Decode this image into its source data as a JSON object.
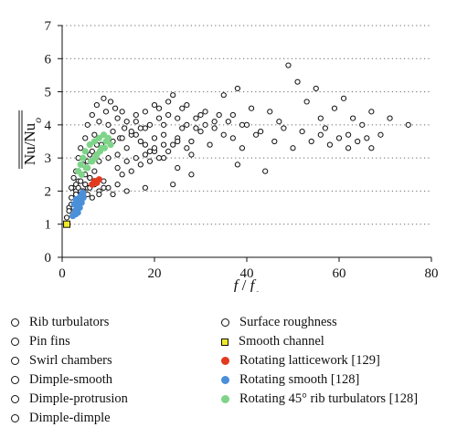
{
  "chart_data": {
    "type": "scatter",
    "ylabel_html": "Nu/Nu<sub>o</sub>",
    "ylabel_parts": {
      "main": "Nu/Nu",
      "sub": "o"
    },
    "xlabel_parts": {
      "f": "f",
      "slash": " / ",
      "fo": "f",
      "sub": "o"
    },
    "xlim": [
      0,
      80
    ],
    "ylim": [
      0,
      7
    ],
    "x_ticks": [
      "0",
      "20",
      "40",
      "60",
      "80"
    ],
    "y_ticks": [
      "0",
      "1",
      "2",
      "3",
      "4",
      "5",
      "6",
      "7"
    ],
    "grid": "horizontal-dotted",
    "series": [
      {
        "name": "Rib turbulators",
        "marker": "open-circle",
        "color": "#111111",
        "points": [
          [
            2.5,
            2.1
          ],
          [
            3,
            2.6
          ],
          [
            3.5,
            3.0
          ],
          [
            4,
            3.3
          ],
          [
            4.5,
            2.5
          ],
          [
            5,
            3.6
          ],
          [
            5.5,
            4.0
          ],
          [
            6,
            3.1
          ],
          [
            6.5,
            4.3
          ],
          [
            7,
            3.7
          ],
          [
            7.5,
            4.6
          ],
          [
            8,
            4.1
          ],
          [
            8.5,
            3.4
          ],
          [
            9,
            4.8
          ],
          [
            9.5,
            4.4
          ],
          [
            10,
            4.0
          ],
          [
            10.5,
            4.7
          ],
          [
            11,
            3.8
          ],
          [
            11.5,
            4.5
          ],
          [
            12,
            4.2
          ],
          [
            12.5,
            3.6
          ],
          [
            13,
            4.4
          ],
          [
            13.5,
            3.9
          ],
          [
            14,
            4.1
          ],
          [
            15,
            3.7
          ],
          [
            16,
            4.3
          ],
          [
            17,
            3.5
          ],
          [
            18,
            3.9
          ],
          [
            19,
            3.2
          ],
          [
            20,
            3.6
          ],
          [
            22,
            4.0
          ],
          [
            24,
            3.4
          ],
          [
            26,
            3.9
          ],
          [
            28,
            3.1
          ],
          [
            30,
            4.3
          ]
        ]
      },
      {
        "name": "Pin fins",
        "marker": "open-circle",
        "color": "#111111",
        "points": [
          [
            3,
            2.0
          ],
          [
            3.5,
            2.3
          ],
          [
            4,
            1.9
          ],
          [
            4.5,
            2.8
          ],
          [
            5,
            2.2
          ],
          [
            5.5,
            2.9
          ],
          [
            6,
            2.4
          ],
          [
            6.5,
            3.2
          ],
          [
            7,
            2.6
          ],
          [
            7.5,
            3.4
          ],
          [
            8,
            2.9
          ],
          [
            9,
            3.3
          ],
          [
            10,
            3.0
          ],
          [
            11,
            3.5
          ],
          [
            12,
            3.1
          ],
          [
            13,
            3.6
          ],
          [
            14,
            3.3
          ],
          [
            16,
            3.7
          ],
          [
            18,
            3.4
          ],
          [
            20,
            3.2
          ],
          [
            22,
            3.0
          ],
          [
            25,
            2.7
          ]
        ]
      },
      {
        "name": "Swirl chambers",
        "marker": "open-circle",
        "color": "#111111",
        "points": [
          [
            21,
            4.5
          ],
          [
            23,
            4.7
          ],
          [
            25,
            4.2
          ],
          [
            27,
            4.6
          ],
          [
            29,
            3.9
          ],
          [
            31,
            4.4
          ],
          [
            33,
            4.1
          ],
          [
            35,
            4.9
          ],
          [
            37,
            4.3
          ],
          [
            38,
            5.1
          ],
          [
            39,
            4.0
          ],
          [
            41,
            4.5
          ],
          [
            43,
            3.8
          ],
          [
            45,
            4.4
          ],
          [
            47,
            4.1
          ],
          [
            49,
            5.8
          ],
          [
            51,
            5.3
          ],
          [
            53,
            4.7
          ],
          [
            55,
            5.1
          ],
          [
            56,
            4.2
          ],
          [
            57,
            3.9
          ],
          [
            59,
            4.5
          ],
          [
            61,
            4.8
          ],
          [
            62,
            3.7
          ],
          [
            63,
            4.2
          ],
          [
            65,
            4.0
          ],
          [
            66,
            3.6
          ],
          [
            67,
            4.4
          ],
          [
            69,
            3.7
          ],
          [
            71,
            4.2
          ],
          [
            75,
            4.0
          ]
        ]
      },
      {
        "name": "Dimple-smooth",
        "marker": "open-circle",
        "color": "#111111",
        "points": [
          [
            2,
            2.1
          ],
          [
            2.5,
            2.4
          ],
          [
            3,
            2.2
          ],
          [
            3.5,
            2.6
          ],
          [
            4,
            2.3
          ],
          [
            4.5,
            2.0
          ],
          [
            5,
            2.5
          ],
          [
            5.5,
            2.1
          ],
          [
            6,
            2.4
          ],
          [
            7,
            2.2
          ],
          [
            8,
            2.0
          ],
          [
            9,
            2.3
          ],
          [
            10,
            2.1
          ],
          [
            11,
            1.9
          ],
          [
            12,
            2.2
          ],
          [
            14,
            2.0
          ],
          [
            18,
            2.1
          ]
        ]
      },
      {
        "name": "Dimple-protrusion",
        "marker": "open-circle",
        "color": "#111111",
        "points": [
          [
            15,
            3.8
          ],
          [
            16,
            4.1
          ],
          [
            17,
            3.9
          ],
          [
            18,
            4.4
          ],
          [
            19,
            4.0
          ],
          [
            20,
            4.6
          ],
          [
            21,
            4.2
          ],
          [
            22,
            3.7
          ],
          [
            23,
            4.3
          ],
          [
            24,
            4.9
          ],
          [
            25,
            3.6
          ],
          [
            26,
            4.5
          ],
          [
            27,
            4.0
          ],
          [
            28,
            3.5
          ],
          [
            29,
            4.2
          ],
          [
            30,
            3.8
          ],
          [
            31,
            4.0
          ],
          [
            32,
            3.4
          ],
          [
            33,
            3.9
          ],
          [
            34,
            4.3
          ],
          [
            35,
            3.7
          ],
          [
            36,
            4.1
          ],
          [
            37,
            3.6
          ],
          [
            38,
            2.8
          ],
          [
            39,
            3.3
          ],
          [
            40,
            4.0
          ],
          [
            42,
            3.7
          ],
          [
            44,
            2.6
          ],
          [
            46,
            3.5
          ],
          [
            48,
            3.9
          ],
          [
            50,
            3.3
          ],
          [
            52,
            3.8
          ],
          [
            54,
            3.5
          ],
          [
            56,
            3.7
          ],
          [
            58,
            3.4
          ],
          [
            60,
            3.6
          ],
          [
            62,
            3.3
          ],
          [
            64,
            3.5
          ],
          [
            67,
            3.3
          ]
        ]
      },
      {
        "name": "Dimple-dimple",
        "marker": "open-circle",
        "color": "#111111",
        "points": [
          [
            1.5,
            1.5
          ],
          [
            2,
            1.8
          ],
          [
            2.5,
            1.6
          ],
          [
            3,
            1.9
          ],
          [
            3.5,
            1.7
          ],
          [
            4,
            2.0
          ],
          [
            4.5,
            1.8
          ],
          [
            5,
            2.2
          ],
          [
            5.5,
            1.9
          ],
          [
            6,
            2.1
          ],
          [
            6.5,
            1.8
          ],
          [
            7,
            2.3
          ],
          [
            8,
            1.9
          ],
          [
            9,
            2.1
          ]
        ]
      },
      {
        "name": "Surface roughness",
        "marker": "open-circle",
        "color": "#111111",
        "points": [
          [
            1,
            1.2
          ],
          [
            1.5,
            1.4
          ],
          [
            2,
            1.6
          ],
          [
            2.5,
            1.5
          ],
          [
            3,
            1.9
          ],
          [
            3.5,
            2.1
          ],
          [
            4,
            1.7
          ],
          [
            12,
            2.7
          ],
          [
            13,
            2.5
          ],
          [
            14,
            2.9
          ],
          [
            15,
            2.6
          ],
          [
            16,
            3.0
          ],
          [
            17,
            2.8
          ],
          [
            18,
            3.1
          ],
          [
            19,
            2.9
          ],
          [
            20,
            3.3
          ],
          [
            21,
            3.0
          ],
          [
            22,
            3.4
          ],
          [
            23,
            3.2
          ],
          [
            24,
            2.2
          ],
          [
            25,
            3.5
          ],
          [
            27,
            3.3
          ],
          [
            28,
            2.5
          ]
        ]
      },
      {
        "name": "Smooth channel",
        "marker": "square",
        "color": "#f1ea2a",
        "points": [
          [
            1,
            1.0
          ]
        ]
      },
      {
        "name": "Rotating latticework [129]",
        "marker": "dot",
        "color": "#e23a1e",
        "points": [
          [
            6.5,
            2.2
          ],
          [
            7,
            2.3
          ],
          [
            7.5,
            2.25
          ],
          [
            8,
            2.35
          ]
        ]
      },
      {
        "name": "Rotating smooth [128]",
        "marker": "dot",
        "color": "#4a90d9",
        "points": [
          [
            2.3,
            1.25
          ],
          [
            2.8,
            1.4
          ],
          [
            3.2,
            1.55
          ],
          [
            3.6,
            1.7
          ],
          [
            4,
            1.85
          ],
          [
            4.4,
            1.95
          ],
          [
            2.6,
            1.6
          ],
          [
            3,
            1.75
          ],
          [
            3.4,
            1.35
          ],
          [
            3.8,
            1.5
          ],
          [
            4.2,
            1.65
          ],
          [
            4.6,
            1.8
          ],
          [
            2.9,
            1.3
          ],
          [
            3.3,
            1.45
          ],
          [
            3.7,
            1.6
          ],
          [
            4.1,
            1.75
          ],
          [
            4.5,
            1.9
          ]
        ]
      },
      {
        "name": "Rotating 45° rib turbulators [128]",
        "marker": "dot",
        "color": "#7ed488",
        "points": [
          [
            3.5,
            2.6
          ],
          [
            4,
            2.8
          ],
          [
            4.5,
            3.0
          ],
          [
            5,
            3.2
          ],
          [
            5.5,
            2.7
          ],
          [
            6,
            3.4
          ],
          [
            6.5,
            2.9
          ],
          [
            7,
            3.5
          ],
          [
            7.5,
            3.1
          ],
          [
            8,
            3.6
          ],
          [
            8.5,
            3.3
          ],
          [
            9,
            3.7
          ],
          [
            9.5,
            3.5
          ],
          [
            10,
            3.6
          ],
          [
            10.5,
            3.4
          ],
          [
            4.2,
            2.5
          ],
          [
            5.2,
            2.7
          ],
          [
            6.2,
            2.9
          ],
          [
            7.2,
            3.0
          ],
          [
            8.2,
            3.2
          ],
          [
            9.2,
            3.3
          ]
        ]
      }
    ]
  },
  "legend": {
    "left": [
      {
        "label": "Rib turbulators",
        "marker": "open-circle"
      },
      {
        "label": "Pin fins",
        "marker": "open-circle"
      },
      {
        "label": "Swirl chambers",
        "marker": "open-circle"
      },
      {
        "label": "Dimple-smooth",
        "marker": "open-circle"
      },
      {
        "label": "Dimple-protrusion",
        "marker": "open-circle"
      },
      {
        "label": "Dimple-dimple",
        "marker": "open-circle"
      }
    ],
    "right": [
      {
        "label": "Surface roughness",
        "marker": "open-circle"
      },
      {
        "label": "Smooth channel",
        "marker": "square",
        "color": "#f1ea2a"
      },
      {
        "label": "Rotating latticework [129]",
        "marker": "dot",
        "color": "#e23a1e"
      },
      {
        "label": "Rotating smooth [128]",
        "marker": "dot",
        "color": "#4a90d9"
      },
      {
        "label": "Rotating 45° rib turbulators [128]",
        "marker": "dot",
        "color": "#7ed488"
      }
    ]
  }
}
